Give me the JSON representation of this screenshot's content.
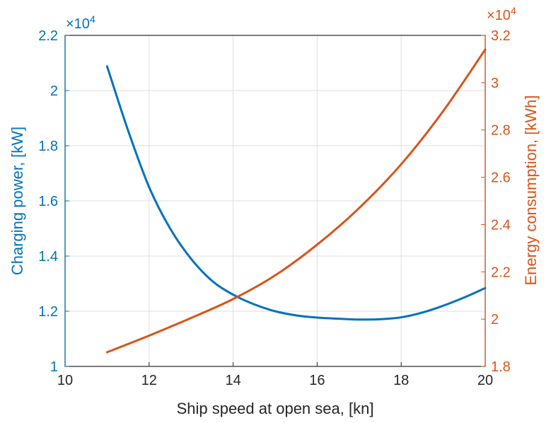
{
  "chart_data": {
    "type": "line",
    "xlabel": "Ship speed at open sea, [kn]",
    "xlim": [
      10,
      20
    ],
    "xticks": [
      "10",
      "12",
      "14",
      "16",
      "18",
      "20"
    ],
    "grid": true,
    "left_axis": {
      "label": "Charging power, [kW]",
      "exponent": "×10",
      "exponent_power": "4",
      "ylim": [
        1.0,
        2.2
      ],
      "ticks": [
        "1",
        "1.2",
        "1.4",
        "1.6",
        "1.8",
        "2",
        "2.2"
      ],
      "color": "#0072BD"
    },
    "right_axis": {
      "label": "Energy consumption, [kWh]",
      "exponent": "×10",
      "exponent_power": "4",
      "ylim": [
        1.8,
        3.2
      ],
      "ticks": [
        "1.8",
        "2",
        "2.2",
        "2.4",
        "2.6",
        "2.8",
        "3",
        "3.2"
      ],
      "color": "#D95319"
    },
    "series": [
      {
        "axis": "left",
        "color": "#0072BD",
        "x": [
          11,
          11.5,
          12,
          12.5,
          13,
          13.5,
          14,
          14.5,
          15,
          15.5,
          16,
          16.5,
          17,
          17.5,
          18,
          18.5,
          19,
          19.5,
          20
        ],
        "y": [
          2.088,
          1.855,
          1.65,
          1.5,
          1.39,
          1.31,
          1.26,
          1.225,
          1.2,
          1.185,
          1.177,
          1.173,
          1.17,
          1.171,
          1.178,
          1.195,
          1.22,
          1.25,
          1.284
        ]
      },
      {
        "axis": "right",
        "color": "#D95319",
        "x": [
          11,
          12,
          13,
          14,
          15,
          16,
          17,
          18,
          19,
          20
        ],
        "y": [
          1.86,
          1.93,
          2.005,
          2.085,
          2.185,
          2.315,
          2.47,
          2.655,
          2.88,
          3.14
        ]
      }
    ]
  }
}
